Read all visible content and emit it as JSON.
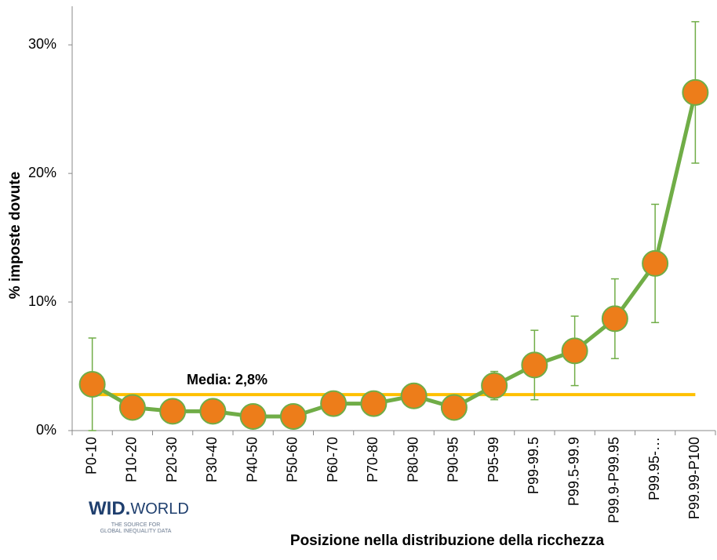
{
  "chart_data": {
    "type": "line",
    "y_label": "% imposte dovute",
    "x_label": "Posizione nella distribuzione della ricchezza",
    "categories": [
      "P0-10",
      "P10-20",
      "P20-30",
      "P30-40",
      "P40-50",
      "P50-60",
      "P60-70",
      "P70-80",
      "P80-90",
      "P90-95",
      "P95-99",
      "P99-99.5",
      "P99.5-99.9",
      "P99.9-P99.95",
      "P99.95-…",
      "P99.99-P100"
    ],
    "series": [
      {
        "name": "% imposte dovute",
        "color": "#70ad47",
        "marker_color": "#ed7d1a",
        "values": [
          3.6,
          1.8,
          1.5,
          1.5,
          1.1,
          1.1,
          2.1,
          2.1,
          2.7,
          1.8,
          3.5,
          5.1,
          6.2,
          8.7,
          13.0,
          26.3
        ],
        "errors": [
          3.6,
          null,
          null,
          null,
          null,
          null,
          null,
          null,
          null,
          null,
          1.1,
          2.7,
          2.7,
          3.1,
          4.6,
          5.5
        ]
      }
    ],
    "mean": {
      "value": 2.8,
      "label": "Media: 2,8%",
      "color": "#ffc000"
    },
    "ylim": [
      0,
      33
    ],
    "yticks": [
      {
        "value": 0,
        "label": "0%"
      },
      {
        "value": 10,
        "label": "10%"
      },
      {
        "value": 20,
        "label": "20%"
      },
      {
        "value": 30,
        "label": "30%"
      }
    ],
    "logo": {
      "name": "WID.",
      "name2": "WORLD",
      "tagline1": "THE SOURCE FOR",
      "tagline2": "GLOBAL INEQUALITY DATA"
    }
  }
}
